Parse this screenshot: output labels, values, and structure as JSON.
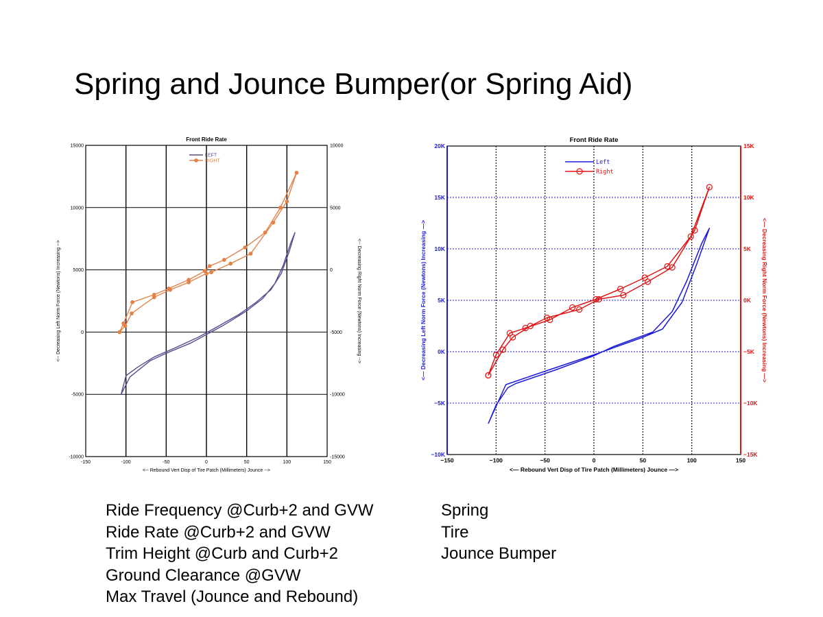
{
  "slide": {
    "title": "Spring and Jounce Bumper(or Spring Aid)",
    "bullets_left": [
      "Ride Frequency @Curb+2 and GVW",
      "Ride Rate @Curb+2 and GVW",
      "Trim Height @Curb and Curb+2",
      "Ground Clearance @GVW",
      "Max Travel (Jounce and Rebound)"
    ],
    "bullets_right": [
      "Spring",
      "Tire",
      "Jounce Bumper"
    ]
  },
  "chart_data": [
    {
      "type": "line",
      "title": "Front Ride Rate",
      "xlabel": "<-- Rebound        Vert Disp of Tire Patch (Millimeters)        Jounce -->",
      "ylabel_left": "<-- Decreasing        Left Norm Force (Newtons)        Increasing -->",
      "ylabel_right": "<-- Decreasing        Right Norm Force (Newtons)        Increasing -->",
      "xlim": [
        -150,
        150
      ],
      "ylim_left": [
        -10000,
        15000
      ],
      "ylim_right": [
        -15000,
        10000
      ],
      "xticks": [
        "-150",
        "-100",
        "-50",
        "0",
        "50",
        "100",
        "150"
      ],
      "yticks_left": [
        "-10000",
        "-5000",
        "0",
        "5000",
        "10000",
        "15000"
      ],
      "yticks_right": [
        "-15000",
        "-10000",
        "-5000",
        "0",
        "5000",
        "10000"
      ],
      "grid": true,
      "legend": "top-center",
      "series": [
        {
          "name": "LEFT",
          "axis": "left",
          "color": "#5a4a8e",
          "marker": "none",
          "x": [
            -106,
            -95,
            -70,
            -50,
            -20,
            0,
            20,
            50,
            70,
            85,
            95,
            105,
            110,
            103,
            93,
            80,
            60,
            40,
            10,
            -10,
            -40,
            -65,
            -85,
            -100,
            -106
          ],
          "y": [
            -5000,
            -3600,
            -2300,
            -1700,
            -900,
            -200,
            500,
            1700,
            2700,
            3900,
            5300,
            7200,
            8000,
            6500,
            4700,
            3400,
            2300,
            1400,
            300,
            -400,
            -1300,
            -2000,
            -2800,
            -3500,
            -5000
          ]
        },
        {
          "name": "RIGHT",
          "axis": "right",
          "color": "#e2834a",
          "marker": "circle",
          "x": [
            -108,
            -103,
            -92,
            -65,
            -47,
            -22,
            -2,
            4,
            22,
            48,
            73,
            92,
            112,
            100,
            83,
            55,
            30,
            6,
            0,
            -22,
            -45,
            -65,
            -93,
            -101,
            -108
          ],
          "y": [
            -5000,
            -4300,
            -2600,
            -2000,
            -1500,
            -800,
            -100,
            300,
            800,
            1800,
            3000,
            5000,
            7800,
            5500,
            3800,
            1300,
            500,
            -200,
            -300,
            -1000,
            -1600,
            -2200,
            -3500,
            -4500,
            -5000
          ]
        }
      ]
    },
    {
      "type": "line",
      "title": "Front Ride Rate",
      "xlabel": "<— Rebound     Vert Disp of Tire Patch (Millimeters)     Jounce —>",
      "ylabel_left": "<— Decreasing    Left Norm Force (Newtons)    Increasing —>",
      "ylabel_right": "<— Decreasing    Right Norm Force (Newtons)    Increasing —>",
      "xlim": [
        -150,
        150
      ],
      "ylim_left": [
        -10000,
        20000
      ],
      "ylim_right": [
        -15000,
        15000
      ],
      "xticks": [
        "−150",
        "−100",
        "−50",
        "0",
        "50",
        "100",
        "150"
      ],
      "yticks_left": [
        "−10K",
        "−5K",
        "0K",
        "5K",
        "10K",
        "15K",
        "20K"
      ],
      "yticks_right": [
        "−15K",
        "−10K",
        "−5K",
        "0K",
        "5K",
        "10K",
        "15K"
      ],
      "grid": true,
      "legend": "top-center",
      "series": [
        {
          "name": "Left",
          "axis": "left",
          "color": "#1a1ad8",
          "marker": "none",
          "x": [
            -108,
            -90,
            -50,
            0,
            50,
            70,
            90,
            105,
            118,
            110,
            95,
            80,
            60,
            20,
            0,
            -40,
            -80,
            -88,
            -100,
            -108
          ],
          "y": [
            -7000,
            -3200,
            -1900,
            -300,
            1400,
            2200,
            4800,
            8500,
            12000,
            10500,
            6900,
            3900,
            1900,
            500,
            -400,
            -1800,
            -3100,
            -3500,
            -5200,
            -7000
          ]
        },
        {
          "name": "Right",
          "axis": "right",
          "color": "#e01414",
          "marker": "circle",
          "x": [
            -108,
            -100,
            -86,
            -70,
            -45,
            -22,
            2,
            27,
            52,
            75,
            99,
            118,
            103,
            80,
            55,
            30,
            5,
            -15,
            -48,
            -65,
            -83,
            -93,
            -108
          ],
          "y": [
            -7300,
            -5300,
            -3200,
            -2700,
            -1900,
            -700,
            100,
            1100,
            2200,
            3300,
            6200,
            11000,
            6800,
            3200,
            1800,
            500,
            100,
            -900,
            -1700,
            -2500,
            -3600,
            -4800,
            -7300
          ]
        }
      ]
    }
  ]
}
